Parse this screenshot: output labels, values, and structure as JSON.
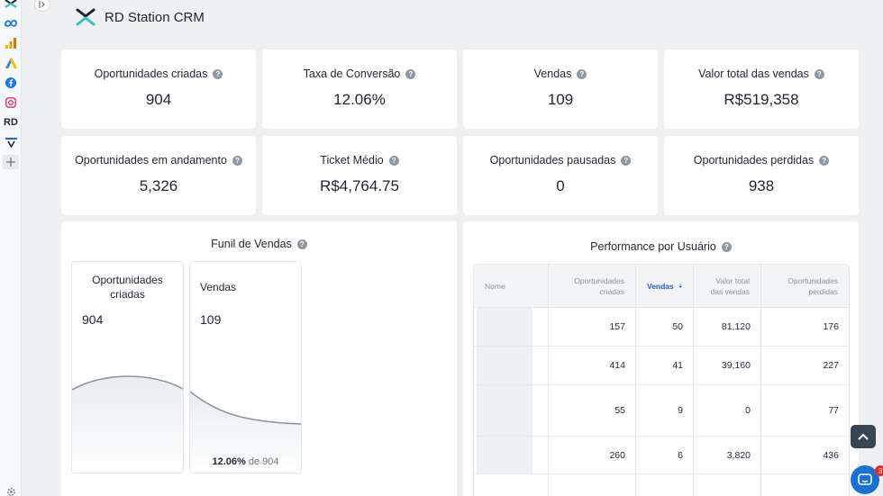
{
  "app": {
    "title": "RD Station CRM"
  },
  "rail": {
    "rd_label": "RD"
  },
  "kpis": [
    {
      "label": "Oportunidades criadas",
      "value": "904"
    },
    {
      "label": "Taxa de Conversão",
      "value": "12.06%"
    },
    {
      "label": "Vendas",
      "value": "109"
    },
    {
      "label": "Valor total das vendas",
      "value": "R$519,358"
    },
    {
      "label": "Oportunidades em andamento",
      "value": "5,326"
    },
    {
      "label": "Ticket Médio",
      "value": "R$4,764.75"
    },
    {
      "label": "Oportunidades pausadas",
      "value": "0"
    },
    {
      "label": "Oportunidades perdidas",
      "value": "938"
    }
  ],
  "funnel": {
    "title": "Funil de Vendas",
    "stages": [
      {
        "label": "Oportunidades criadas",
        "value": "904"
      },
      {
        "label": "Vendas",
        "value": "109"
      }
    ],
    "footer_pct": "12.06%",
    "footer_rest": "de 904"
  },
  "performance": {
    "title": "Performance por Usuário",
    "columns": [
      "Nome",
      "Oportunidades criadas",
      "Vendas",
      "Valor total das vendas",
      "Oportunidades perdidas"
    ],
    "sorted_column": "Vendas",
    "rows": [
      {
        "criadas": "157",
        "vendas": "50",
        "valor": "81,120",
        "perdidas": "176"
      },
      {
        "criadas": "414",
        "vendas": "41",
        "valor": "39,160",
        "perdidas": "227"
      },
      {
        "criadas": "55",
        "vendas": "9",
        "valor": "0",
        "perdidas": "77"
      },
      {
        "criadas": "260",
        "vendas": "6",
        "valor": "3,820",
        "perdidas": "436"
      },
      {
        "criadas": "",
        "vendas": "",
        "valor": "",
        "perdidas": ""
      }
    ]
  },
  "widgets": {
    "chat_badge": "3"
  },
  "colors": {
    "accent": "#1f5bc4",
    "chat": "#1971d6",
    "brand_teal": "#2fc3c3"
  }
}
